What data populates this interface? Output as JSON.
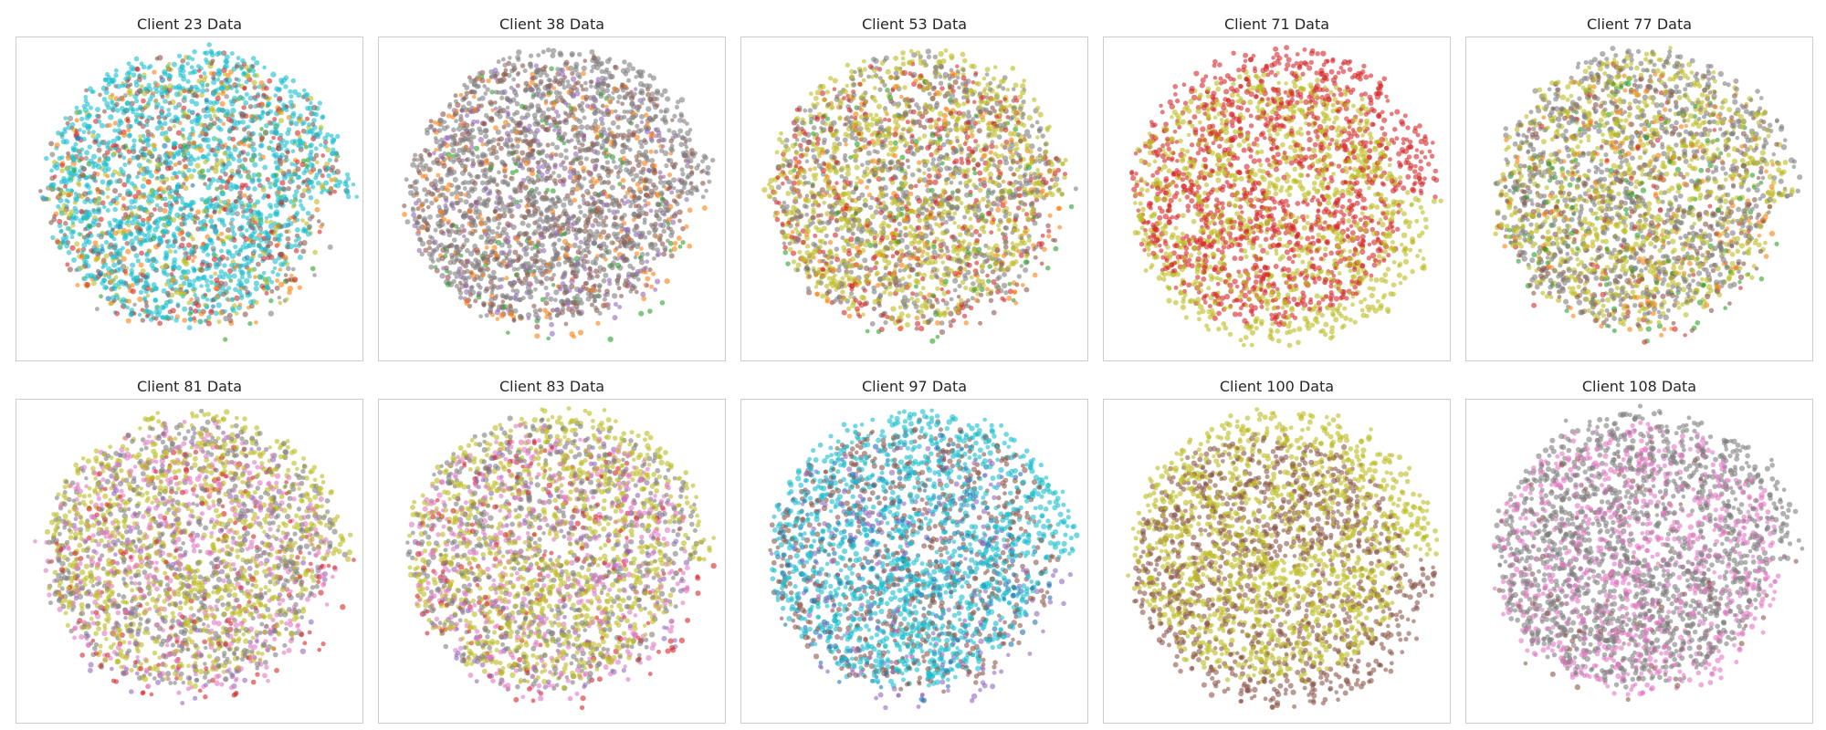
{
  "figure": {
    "palette": {
      "tab:blue": "#1f77b4",
      "tab:orange": "#ff7f0e",
      "tab:green": "#2ca02c",
      "tab:red": "#d62728",
      "tab:purple": "#9467bd",
      "tab:brown": "#8c564b",
      "tab:pink": "#e377c2",
      "tab:gray": "#7f7f7f",
      "tab:olive": "#bcbd22",
      "tab:cyan": "#17becf"
    },
    "background": "#ffffff",
    "frame_color": "#cccccc"
  },
  "chart_data": [
    {
      "type": "scatter",
      "title": "Client 23 Data",
      "xlabel": "",
      "ylabel": "",
      "axes": "hidden",
      "grid": false,
      "legend": "none",
      "class_mix": [
        {
          "color": "#17becf",
          "share": 0.55
        },
        {
          "color": "#8c564b",
          "share": 0.12
        },
        {
          "color": "#bcbd22",
          "share": 0.12
        },
        {
          "color": "#d62728",
          "share": 0.08
        },
        {
          "color": "#ff7f0e",
          "share": 0.06
        },
        {
          "color": "#7f7f7f",
          "share": 0.04
        },
        {
          "color": "#2ca02c",
          "share": 0.02
        },
        {
          "color": "#1f77b4",
          "share": 0.01
        }
      ]
    },
    {
      "type": "scatter",
      "title": "Client 38 Data",
      "xlabel": "",
      "ylabel": "",
      "axes": "hidden",
      "grid": false,
      "legend": "none",
      "class_mix": [
        {
          "color": "#7f7f7f",
          "share": 0.55
        },
        {
          "color": "#8c564b",
          "share": 0.22
        },
        {
          "color": "#9467bd",
          "share": 0.1
        },
        {
          "color": "#ff7f0e",
          "share": 0.09
        },
        {
          "color": "#2ca02c",
          "share": 0.04
        }
      ]
    },
    {
      "type": "scatter",
      "title": "Client 53 Data",
      "xlabel": "",
      "ylabel": "",
      "axes": "hidden",
      "grid": false,
      "legend": "none",
      "class_mix": [
        {
          "color": "#bcbd22",
          "share": 0.4
        },
        {
          "color": "#7f7f7f",
          "share": 0.3
        },
        {
          "color": "#d62728",
          "share": 0.14
        },
        {
          "color": "#8c564b",
          "share": 0.06
        },
        {
          "color": "#ff7f0e",
          "share": 0.06
        },
        {
          "color": "#2ca02c",
          "share": 0.04
        }
      ]
    },
    {
      "type": "scatter",
      "title": "Client 71 Data",
      "xlabel": "",
      "ylabel": "",
      "axes": "hidden",
      "grid": false,
      "legend": "none",
      "class_mix": [
        {
          "color": "#d62728",
          "share": 0.52
        },
        {
          "color": "#bcbd22",
          "share": 0.48
        }
      ]
    },
    {
      "type": "scatter",
      "title": "Client 77 Data",
      "xlabel": "",
      "ylabel": "",
      "axes": "hidden",
      "grid": false,
      "legend": "none",
      "class_mix": [
        {
          "color": "#7f7f7f",
          "share": 0.38
        },
        {
          "color": "#bcbd22",
          "share": 0.38
        },
        {
          "color": "#8c564b",
          "share": 0.12
        },
        {
          "color": "#ff7f0e",
          "share": 0.06
        },
        {
          "color": "#2ca02c",
          "share": 0.04
        },
        {
          "color": "#d62728",
          "share": 0.02
        }
      ]
    },
    {
      "type": "scatter",
      "title": "Client 81 Data",
      "xlabel": "",
      "ylabel": "",
      "axes": "hidden",
      "grid": false,
      "legend": "none",
      "class_mix": [
        {
          "color": "#bcbd22",
          "share": 0.4
        },
        {
          "color": "#7f7f7f",
          "share": 0.28
        },
        {
          "color": "#e377c2",
          "share": 0.2
        },
        {
          "color": "#9467bd",
          "share": 0.06
        },
        {
          "color": "#d62728",
          "share": 0.06
        }
      ]
    },
    {
      "type": "scatter",
      "title": "Client 83 Data",
      "xlabel": "",
      "ylabel": "",
      "axes": "hidden",
      "grid": false,
      "legend": "none",
      "class_mix": [
        {
          "color": "#bcbd22",
          "share": 0.4
        },
        {
          "color": "#7f7f7f",
          "share": 0.28
        },
        {
          "color": "#e377c2",
          "share": 0.2
        },
        {
          "color": "#9467bd",
          "share": 0.06
        },
        {
          "color": "#d62728",
          "share": 0.06
        }
      ]
    },
    {
      "type": "scatter",
      "title": "Client 97 Data",
      "xlabel": "",
      "ylabel": "",
      "axes": "hidden",
      "grid": false,
      "legend": "none",
      "class_mix": [
        {
          "color": "#17becf",
          "share": 0.55
        },
        {
          "color": "#8c564b",
          "share": 0.28
        },
        {
          "color": "#1f77b4",
          "share": 0.08
        },
        {
          "color": "#9467bd",
          "share": 0.09
        }
      ]
    },
    {
      "type": "scatter",
      "title": "Client 100 Data",
      "xlabel": "",
      "ylabel": "",
      "axes": "hidden",
      "grid": false,
      "legend": "none",
      "class_mix": [
        {
          "color": "#bcbd22",
          "share": 0.55
        },
        {
          "color": "#8c564b",
          "share": 0.45
        }
      ]
    },
    {
      "type": "scatter",
      "title": "Client 108 Data",
      "xlabel": "",
      "ylabel": "",
      "axes": "hidden",
      "grid": false,
      "legend": "none",
      "class_mix": [
        {
          "color": "#7f7f7f",
          "share": 0.6
        },
        {
          "color": "#e377c2",
          "share": 0.36
        },
        {
          "color": "#8c564b",
          "share": 0.04
        }
      ]
    }
  ]
}
